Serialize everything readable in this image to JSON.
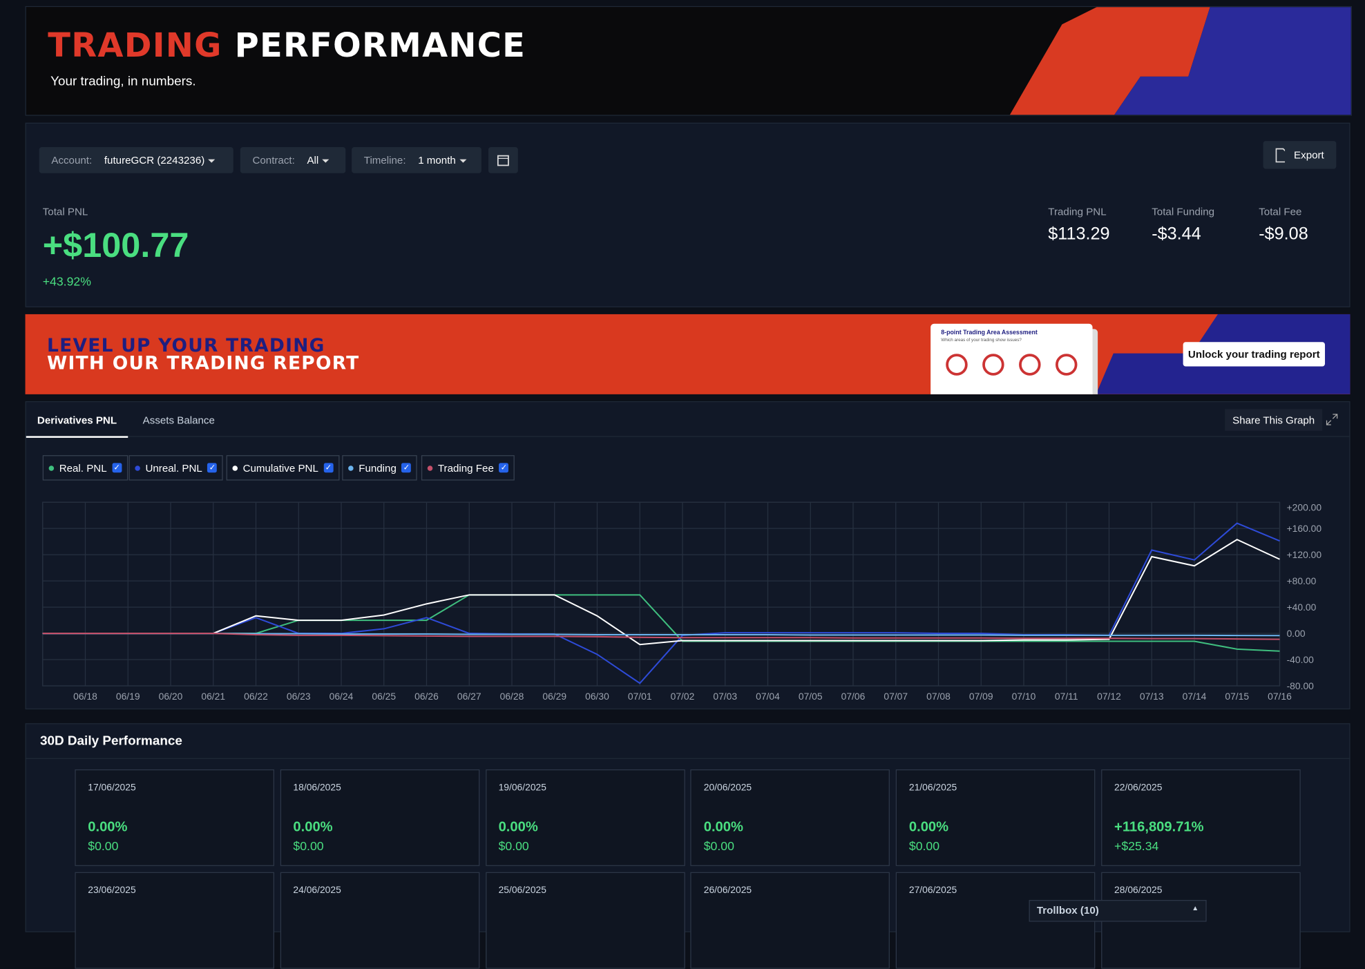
{
  "header": {
    "title_a": "TRADING",
    "title_b": "PERFORMANCE",
    "subtitle": "Your trading, in numbers."
  },
  "filters": {
    "account_label": "Account:",
    "account_value": "futureGCR (2243236)",
    "contract_label": "Contract:",
    "contract_value": "All",
    "timeline_label": "Timeline:",
    "timeline_value": "1 month",
    "export": "Export"
  },
  "summary": {
    "total_pnl_label": "Total PNL",
    "total_pnl": "+$100.77",
    "total_pnl_pct": "+43.92%",
    "stats": [
      {
        "label": "Trading PNL",
        "value": "$113.29"
      },
      {
        "label": "Total Funding",
        "value": "-$3.44"
      },
      {
        "label": "Total Fee",
        "value": "-$9.08"
      }
    ]
  },
  "banner": {
    "line1": "LEVEL UP YOUR TRADING",
    "line2": "WITH OUR TRADING REPORT",
    "card_title": "8-point Trading Area Assessment",
    "card_subtitle": "Which areas of your trading show issues?",
    "button": "Unlock your trading report"
  },
  "tabs": [
    "Derivatives PNL",
    "Assets Balance"
  ],
  "share": "Share This Graph",
  "chart_data": {
    "type": "line",
    "categories": [
      null,
      "06/18",
      "06/19",
      "06/20",
      "06/21",
      "06/22",
      "06/23",
      "06/24",
      "06/25",
      "06/26",
      "06/27",
      "06/28",
      "06/29",
      "06/30",
      "07/01",
      "07/02",
      "07/03",
      "07/04",
      "07/05",
      "07/06",
      "07/07",
      "07/08",
      "07/09",
      "07/10",
      "07/11",
      "07/12",
      "07/13",
      "07/14",
      "07/15",
      "07/16"
    ],
    "series": [
      {
        "name": "Real. PNL",
        "color": "#3fbf7f",
        "values": [
          0,
          0,
          0,
          0,
          0,
          0,
          20,
          20,
          20,
          20,
          58.7,
          58.7,
          58.7,
          58.7,
          58.7,
          -12,
          -12,
          -12,
          -12,
          -12,
          -12,
          -12,
          -12,
          -12,
          -12,
          -12,
          -12,
          -12,
          -24,
          -27
        ]
      },
      {
        "name": "Unreal. PNL",
        "color": "#2e4bd8",
        "values": [
          0,
          0,
          0,
          0,
          0,
          24,
          0,
          0,
          7,
          24,
          0,
          -1,
          -1,
          -32,
          -76,
          -3,
          1,
          1,
          1,
          1,
          1,
          0,
          0,
          -2,
          -2,
          -3,
          127,
          112,
          168,
          141
        ]
      },
      {
        "name": "Cumulative PNL",
        "color": "#ffffff",
        "values": [
          0,
          0,
          0,
          0,
          0,
          26.7,
          20,
          20,
          28,
          45,
          58.7,
          58.7,
          58.7,
          26.7,
          -17,
          -11,
          -11,
          -11,
          -11,
          -11,
          -11,
          -11,
          -11,
          -10,
          -10,
          -9,
          117,
          103,
          143,
          113
        ]
      },
      {
        "name": "Funding",
        "color": "#6bb3ee",
        "values": [
          0,
          0,
          0,
          0,
          0,
          -0.5,
          -0.5,
          -1,
          -1,
          -1,
          -1.5,
          -1.5,
          -1.5,
          -2,
          -2,
          -2,
          -2,
          -2,
          -2.5,
          -2.5,
          -2.5,
          -2.5,
          -2.5,
          -3,
          -3,
          -3,
          -3,
          -3,
          -3.2,
          -3.4
        ]
      },
      {
        "name": "Trading Fee",
        "color": "#c4506a",
        "values": [
          0,
          0,
          0,
          0,
          0,
          -2,
          -3,
          -3,
          -3.5,
          -4,
          -4.5,
          -4.5,
          -4.5,
          -5,
          -6,
          -6.5,
          -6.5,
          -6.5,
          -6.5,
          -7,
          -7,
          -7,
          -7,
          -7.5,
          -7.5,
          -7.5,
          -8,
          -8,
          -8.5,
          -9
        ]
      }
    ],
    "ylim": [
      -80,
      200
    ],
    "yticks": [
      {
        "value": -80,
        "label": "-80.00"
      },
      {
        "value": -40,
        "label": "-40.00"
      },
      {
        "value": 0,
        "label": "0.00"
      },
      {
        "value": 40,
        "label": "+40.00"
      },
      {
        "value": 80,
        "label": "+80.00"
      },
      {
        "value": 120,
        "label": "+120.00"
      },
      {
        "value": 160,
        "label": "+160.00"
      },
      {
        "value": 200,
        "label": "+200.00"
      }
    ],
    "grid": true
  },
  "daily": {
    "title": "30D Daily Performance",
    "cards": [
      {
        "date": "17/06/2025",
        "pct": "0.00%",
        "amount": "$0.00"
      },
      {
        "date": "18/06/2025",
        "pct": "0.00%",
        "amount": "$0.00"
      },
      {
        "date": "19/06/2025",
        "pct": "0.00%",
        "amount": "$0.00"
      },
      {
        "date": "20/06/2025",
        "pct": "0.00%",
        "amount": "$0.00"
      },
      {
        "date": "21/06/2025",
        "pct": "0.00%",
        "amount": "$0.00"
      },
      {
        "date": "22/06/2025",
        "pct": "+116,809.71%",
        "amount": "+$25.34"
      },
      {
        "date": "23/06/2025"
      },
      {
        "date": "24/06/2025"
      },
      {
        "date": "25/06/2025"
      },
      {
        "date": "26/06/2025"
      },
      {
        "date": "27/06/2025"
      },
      {
        "date": "28/06/2025"
      }
    ]
  },
  "trollbox": "Trollbox (10)"
}
